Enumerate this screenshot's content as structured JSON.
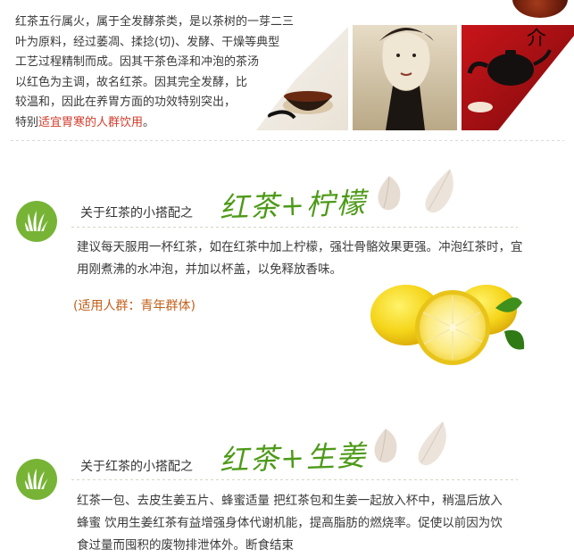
{
  "intro": {
    "lines": [
      "红茶五行属火，属于全发酵茶类，是以茶树的一芽二三",
      "叶为原料，经过萎凋、揉捻(切)、发酵、干燥等典型",
      "工艺过程精制而成。因其干茶色泽和冲泡的茶汤",
      "以红色为主调，故名红茶。因其完全发酵，比",
      "较温和，因此在养胃方面的功效特别突出，"
    ],
    "last_prefix": "特别",
    "last_highlight": "适宜胃寒的人群饮用",
    "last_suffix": "。"
  },
  "sections": [
    {
      "heading": "关于红茶的小搭配之",
      "title": "红茶+柠檬",
      "body": "建议每天服用一杯红茶，如在红茶中加上柠檬，强壮骨骼效果更强。冲泡红茶时，宜用刚煮沸的水冲泡，并加以杯盖，以免释放香味。",
      "audience": "(适用人群：青年群体)"
    },
    {
      "heading": "关于红茶的小搭配之",
      "title": "红茶+生姜",
      "body": "红茶一包、去皮生姜五片、蜂蜜适量  把红茶包和生姜一起放入杯中，稍温后放入蜂蜜 饮用生姜红茶有益增强身体代谢机能，提高脂肪的燃烧率。促使以前因为饮食过量而囤积的废物排泄体外。断食结束"
    }
  ],
  "colors": {
    "accent_green": "#77b436",
    "title_green": "#4d9a18",
    "highlight_red": "#d23b2a",
    "audience_orange": "#c2601b"
  },
  "icons": [
    "grass-icon",
    "leaf-icon",
    "lemon-image",
    "tea-cup-image",
    "woman-portrait-image",
    "teapot-image"
  ]
}
